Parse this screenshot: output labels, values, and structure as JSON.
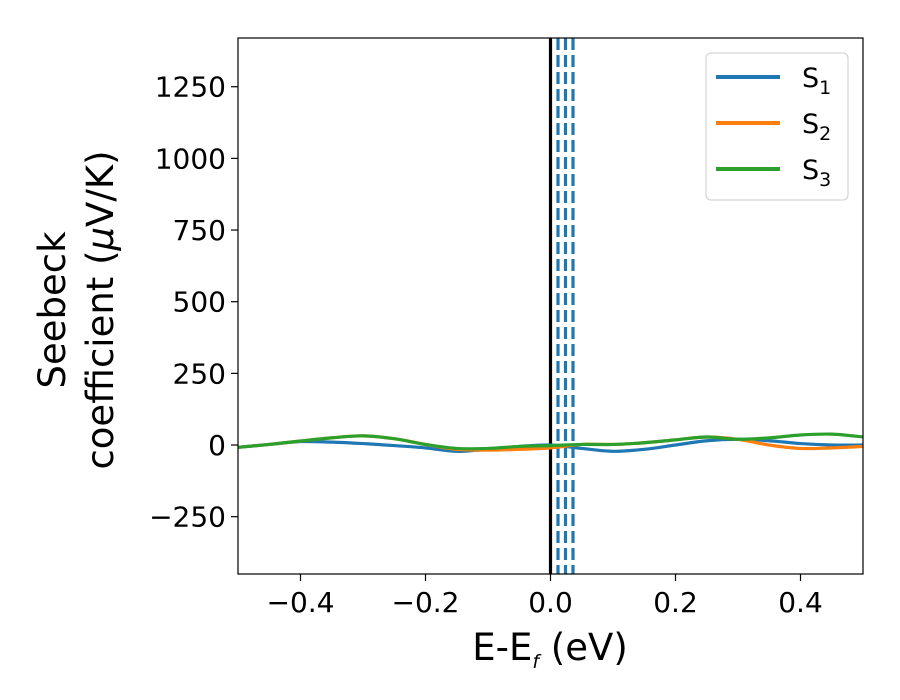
{
  "chart_data": {
    "type": "line",
    "xlabel": {
      "base": "E-E",
      "sub": "f",
      "suffix": " (eV)"
    },
    "ylabel": {
      "line1": "Seebeck",
      "line2_prefix": "coefficient  (",
      "mu": "μ",
      "line2_suffix": "V/K)"
    },
    "xlim": [
      -0.5,
      0.5
    ],
    "ylim": [
      -450,
      1420
    ],
    "x_ticks": [
      -0.4,
      -0.2,
      0.0,
      0.2,
      0.4
    ],
    "x_tick_labels": [
      "−0.4",
      "−0.2",
      "0.0",
      "0.2",
      "0.4"
    ],
    "y_ticks": [
      -250,
      0,
      250,
      500,
      750,
      1000,
      1250
    ],
    "y_tick_labels": [
      "−250",
      "0",
      "250",
      "500",
      "750",
      "1000",
      "1250"
    ],
    "legend_position": "top-right",
    "vertical_lines": [
      {
        "x": 0.0,
        "style": "solid",
        "color": "#000000"
      },
      {
        "x": 0.012,
        "style": "dashed",
        "color": "#1f77b4"
      },
      {
        "x": 0.024,
        "style": "dashed",
        "color": "#1f77b4"
      },
      {
        "x": 0.036,
        "style": "dashed",
        "color": "#1f77b4"
      }
    ],
    "x": [
      -0.5,
      -0.45,
      -0.4,
      -0.35,
      -0.3,
      -0.25,
      -0.2,
      -0.15,
      -0.1,
      -0.05,
      0.0,
      0.05,
      0.1,
      0.15,
      0.2,
      0.25,
      0.3,
      0.35,
      0.4,
      0.45,
      0.5
    ],
    "series": [
      {
        "name_base": "S",
        "name_sub": "1",
        "color": "#1f77b4",
        "values": [
          -8,
          2,
          12,
          10,
          5,
          -2,
          -10,
          -22,
          -15,
          -5,
          0,
          -12,
          -22,
          -15,
          0,
          15,
          20,
          15,
          5,
          0,
          0
        ]
      },
      {
        "name_base": "S",
        "name_sub": "2",
        "color": "#ff7f0e",
        "values": [
          -8,
          2,
          14,
          25,
          32,
          22,
          2,
          -15,
          -18,
          -15,
          -10,
          2,
          2,
          8,
          18,
          28,
          20,
          0,
          -12,
          -10,
          -5
        ]
      },
      {
        "name_base": "S",
        "name_sub": "3",
        "color": "#2ca02c",
        "values": [
          -8,
          2,
          14,
          25,
          32,
          22,
          2,
          -12,
          -12,
          -5,
          -2,
          2,
          2,
          8,
          18,
          28,
          20,
          25,
          35,
          38,
          28
        ]
      }
    ]
  }
}
